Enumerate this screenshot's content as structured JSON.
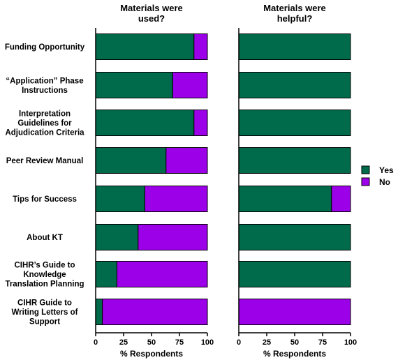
{
  "chart_data": {
    "type": "bar",
    "stacked": true,
    "orientation": "horizontal",
    "categories": [
      [
        "Funding  Opportunity"
      ],
      [
        "“Application” Phase",
        "Instructions"
      ],
      [
        "Interpretation",
        "Guidelines for",
        "Adjudication Criteria"
      ],
      [
        "Peer Review Manual"
      ],
      [
        "Tips for Success"
      ],
      [
        "About KT"
      ],
      [
        "CIHR’s Guide to",
        "Knowledge",
        "Translation Planning"
      ],
      [
        "CIHR Guide to",
        "Writing Letters of",
        "Support"
      ]
    ],
    "colors": {
      "Yes": "#006b4a",
      "No": "#9b00e8"
    },
    "legend": {
      "position": "right",
      "entries": [
        "Yes",
        "No"
      ]
    },
    "xlim": [
      0,
      100
    ],
    "xticks": [
      0,
      25,
      50,
      75,
      100
    ],
    "panels": [
      {
        "title": [
          "Materials were",
          "used?"
        ],
        "xlabel": "% Respondents",
        "series": [
          {
            "name": "Yes",
            "values": [
              88,
              69,
              88,
              63,
              44,
              38,
              19,
              6
            ]
          },
          {
            "name": "No",
            "values": [
              12,
              31,
              12,
              37,
              56,
              62,
              81,
              94
            ]
          }
        ]
      },
      {
        "title": [
          "Materials were",
          "helpful?"
        ],
        "xlabel": "% Respondents",
        "series": [
          {
            "name": "Yes",
            "values": [
              100,
              100,
              100,
              100,
              83,
              100,
              100,
              0
            ]
          },
          {
            "name": "No",
            "values": [
              0,
              0,
              0,
              0,
              17,
              0,
              0,
              100
            ]
          }
        ]
      }
    ]
  }
}
